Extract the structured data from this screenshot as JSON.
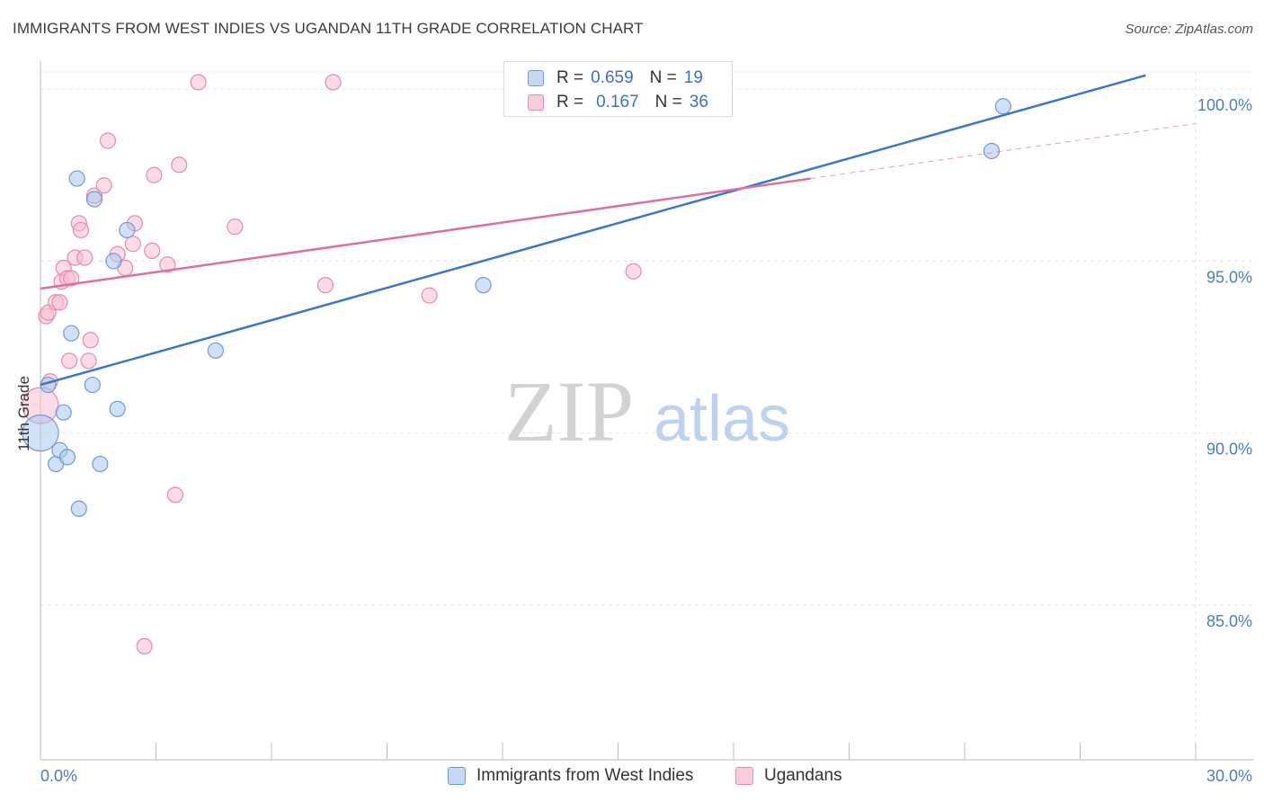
{
  "header": {
    "title": "IMMIGRANTS FROM WEST INDIES VS UGANDAN 11TH GRADE CORRELATION CHART",
    "source": "Source: ZipAtlas.com"
  },
  "watermark": {
    "zip": "ZIP",
    "atlas": "atlas"
  },
  "legend": {
    "rows": [
      {
        "r_key": "R =",
        "r_value": "0.659",
        "n_key": "N =",
        "n_value": "19"
      },
      {
        "r_key": "R =",
        "r_value": "0.167",
        "n_key": "N =",
        "n_value": "36"
      }
    ]
  },
  "colors": {
    "blue_fill": "#aac8f0",
    "blue_stroke": "#6e9ad8",
    "blue_line": "#3a76cc",
    "pink_fill": "#f7bdd0",
    "pink_stroke": "#e88aa8",
    "pink_line": "#e0709a",
    "tick_label": "#4a7cc8",
    "grid": "#e4e4e4"
  },
  "chart_data": {
    "type": "scatter",
    "title": "IMMIGRANTS FROM WEST INDIES VS UGANDAN 11TH GRADE CORRELATION CHART",
    "xlabel": "",
    "ylabel": "11th Grade",
    "xlim": [
      0,
      30
    ],
    "ylim": [
      80.5,
      100.5
    ],
    "x_tick_labels": [
      "0.0%",
      "30.0%"
    ],
    "y_ticks": [
      85,
      90,
      95,
      100
    ],
    "y_tick_labels": [
      "85.0%",
      "90.0%",
      "95.0%",
      "100.0%"
    ],
    "grid": true,
    "series": [
      {
        "name": "Immigrants from West Indies",
        "r": 0.659,
        "n": 19,
        "trend": {
          "x": [
            0,
            28.7
          ],
          "y": [
            91.4,
            100.4
          ]
        },
        "points": [
          {
            "x": 0.0,
            "y": 90.0,
            "size": "large"
          },
          {
            "x": 0.2,
            "y": 91.4
          },
          {
            "x": 0.4,
            "y": 89.1
          },
          {
            "x": 0.5,
            "y": 89.5
          },
          {
            "x": 0.6,
            "y": 90.6
          },
          {
            "x": 0.7,
            "y": 89.3
          },
          {
            "x": 0.8,
            "y": 92.9
          },
          {
            "x": 0.95,
            "y": 97.4
          },
          {
            "x": 1.0,
            "y": 87.8
          },
          {
            "x": 1.35,
            "y": 91.4
          },
          {
            "x": 1.4,
            "y": 96.8
          },
          {
            "x": 1.55,
            "y": 89.1
          },
          {
            "x": 1.9,
            "y": 95.0
          },
          {
            "x": 2.0,
            "y": 90.7
          },
          {
            "x": 2.25,
            "y": 95.9
          },
          {
            "x": 4.55,
            "y": 92.4
          },
          {
            "x": 11.5,
            "y": 94.3
          },
          {
            "x": 24.7,
            "y": 98.2
          },
          {
            "x": 25.0,
            "y": 99.5
          }
        ]
      },
      {
        "name": "Ugandans",
        "r": 0.167,
        "n": 36,
        "trend": {
          "x": [
            0,
            20.0
          ],
          "y": [
            94.2,
            97.4
          ]
        },
        "trend_extension": {
          "x": [
            20.0,
            30.0
          ],
          "y": [
            97.4,
            99.0
          ]
        },
        "points": [
          {
            "x": 0.0,
            "y": 90.8,
            "size": "large"
          },
          {
            "x": 0.15,
            "y": 93.4
          },
          {
            "x": 0.2,
            "y": 93.5
          },
          {
            "x": 0.25,
            "y": 91.5
          },
          {
            "x": 0.4,
            "y": 93.8
          },
          {
            "x": 0.5,
            "y": 93.8
          },
          {
            "x": 0.55,
            "y": 94.4
          },
          {
            "x": 0.6,
            "y": 94.8
          },
          {
            "x": 0.7,
            "y": 94.5
          },
          {
            "x": 0.75,
            "y": 92.1
          },
          {
            "x": 0.8,
            "y": 94.5
          },
          {
            "x": 0.9,
            "y": 95.1
          },
          {
            "x": 1.0,
            "y": 96.1
          },
          {
            "x": 1.05,
            "y": 95.9
          },
          {
            "x": 1.15,
            "y": 95.1
          },
          {
            "x": 1.25,
            "y": 92.1
          },
          {
            "x": 1.3,
            "y": 92.7
          },
          {
            "x": 1.4,
            "y": 96.9
          },
          {
            "x": 1.65,
            "y": 97.2
          },
          {
            "x": 1.75,
            "y": 98.5
          },
          {
            "x": 2.0,
            "y": 95.2
          },
          {
            "x": 2.2,
            "y": 94.8
          },
          {
            "x": 2.4,
            "y": 95.5
          },
          {
            "x": 2.45,
            "y": 96.1
          },
          {
            "x": 2.7,
            "y": 83.8
          },
          {
            "x": 2.9,
            "y": 95.3
          },
          {
            "x": 2.95,
            "y": 97.5
          },
          {
            "x": 3.3,
            "y": 94.9
          },
          {
            "x": 3.5,
            "y": 88.2
          },
          {
            "x": 3.6,
            "y": 97.8
          },
          {
            "x": 4.1,
            "y": 100.2
          },
          {
            "x": 5.05,
            "y": 96.0
          },
          {
            "x": 7.4,
            "y": 94.3
          },
          {
            "x": 7.6,
            "y": 100.2
          },
          {
            "x": 10.1,
            "y": 94.0
          },
          {
            "x": 15.4,
            "y": 94.7
          }
        ]
      }
    ]
  }
}
